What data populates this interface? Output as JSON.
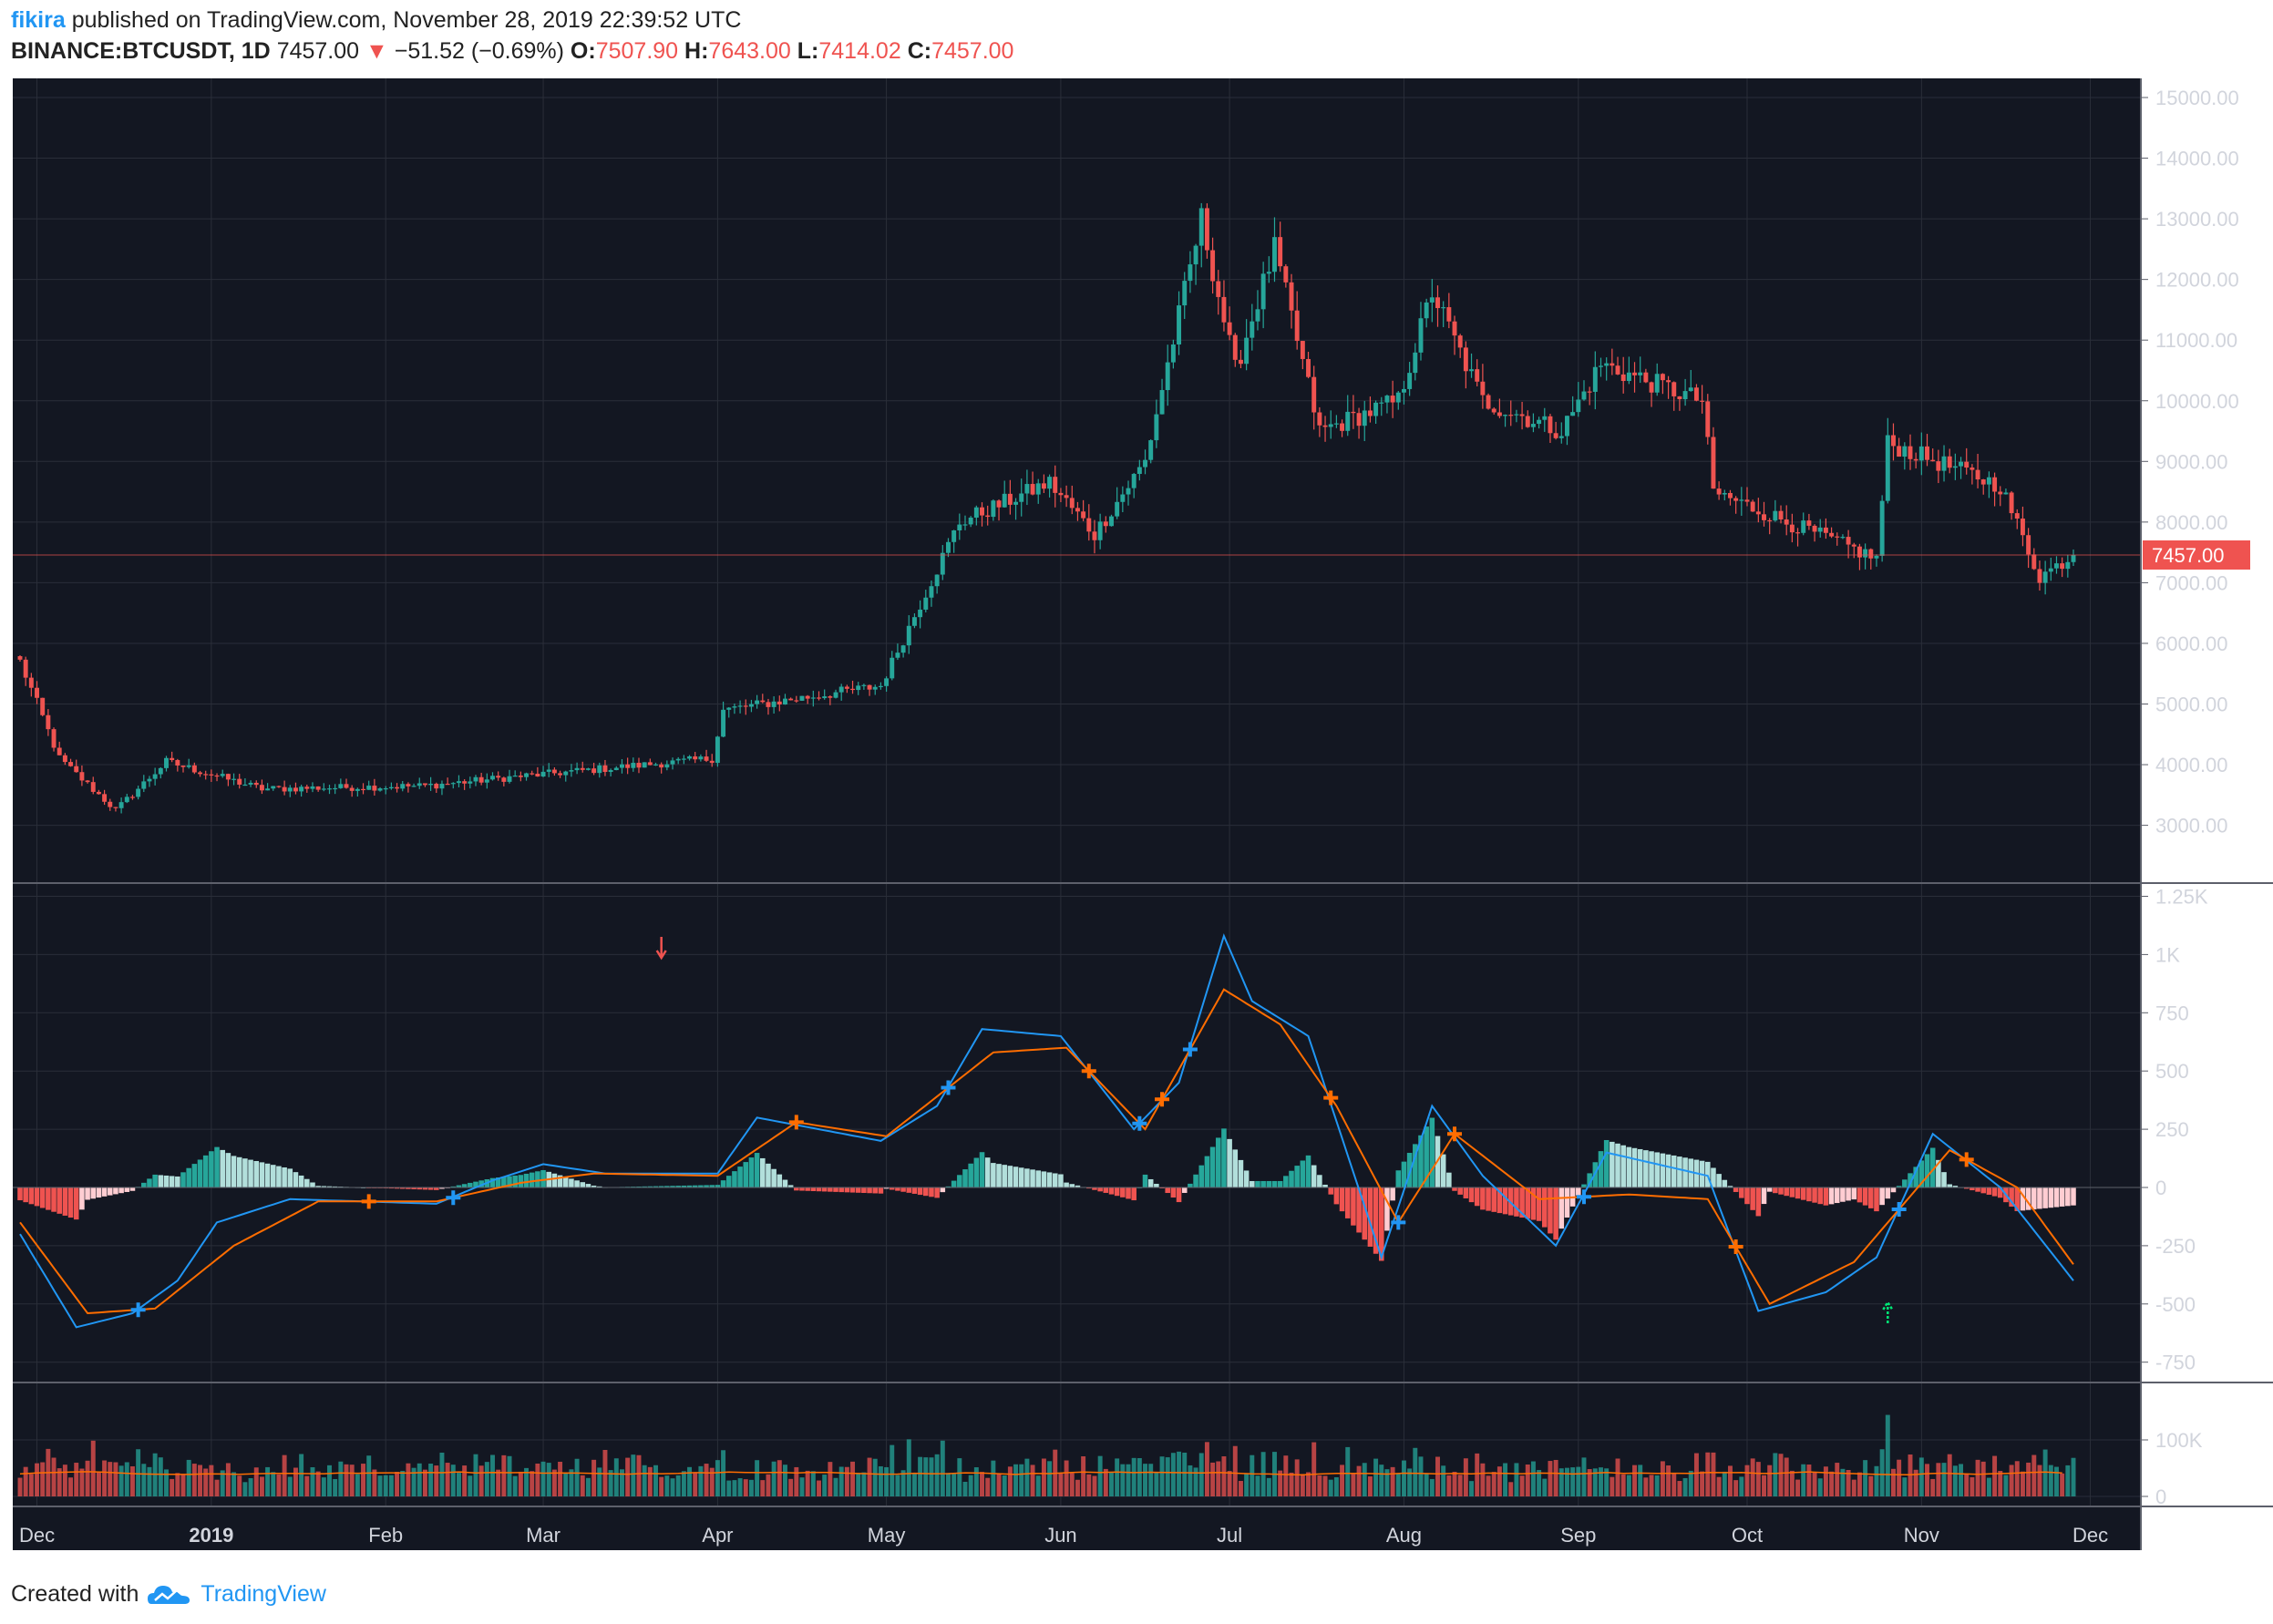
{
  "header": {
    "user": "fikira",
    "published_text": "published on TradingView.com, November 28, 2019 22:39:52 UTC",
    "symbol": "BINANCE:BTCUSDT, 1D",
    "last_price": "7457.00",
    "change_arrow": "▼",
    "change": "−51.52 (−0.69%)",
    "o_label": "O:",
    "o_value": "7507.90",
    "h_label": "H:",
    "h_value": "7643.00",
    "l_label": "L:",
    "l_value": "7414.02",
    "c_label": "C:",
    "c_value": "7457.00"
  },
  "footer": {
    "created_with": "Created with",
    "brand": "TradingView"
  },
  "colors": {
    "background": "#131722",
    "grid": "#2a2e39",
    "up": "#26a69a",
    "down": "#ef5350",
    "up_light": "#b2dfdb",
    "down_light": "#ffcdd2",
    "macd": "#2196f3",
    "signal": "#ff6d00",
    "axis_text": "#d1d4dc"
  },
  "chart_data": [
    {
      "type": "candlestick",
      "pane": "price",
      "y_ticks": [
        "15000.00",
        "14000.00",
        "13000.00",
        "12000.00",
        "11000.00",
        "10000.00",
        "9000.00",
        "8000.00",
        "7000.00",
        "6000.00",
        "5000.00",
        "4000.00",
        "3000.00"
      ],
      "ylim": [
        2300,
        15300
      ],
      "last_price_label": "7457.00",
      "x_ticks": [
        "Dec",
        "2019",
        "Feb",
        "Mar",
        "Apr",
        "May",
        "Jun",
        "Jul",
        "Aug",
        "Sep",
        "Oct",
        "Nov",
        "Dec"
      ],
      "date_range": [
        "2018-11-28",
        "2019-11-28"
      ],
      "key_points": [
        {
          "date": "2018-11-28",
          "close": 5700
        },
        {
          "date": "2018-12-05",
          "close": 4100
        },
        {
          "date": "2018-12-15",
          "close": 3250
        },
        {
          "date": "2018-12-24",
          "close": 4050
        },
        {
          "date": "2019-01-10",
          "close": 3600
        },
        {
          "date": "2019-02-08",
          "close": 3650
        },
        {
          "date": "2019-02-24",
          "close": 3800
        },
        {
          "date": "2019-03-31",
          "close": 4100
        },
        {
          "date": "2019-04-02",
          "close": 4900
        },
        {
          "date": "2019-04-30",
          "close": 5300
        },
        {
          "date": "2019-05-14",
          "close": 8000
        },
        {
          "date": "2019-05-30",
          "close": 8650
        },
        {
          "date": "2019-06-07",
          "close": 7800
        },
        {
          "date": "2019-06-16",
          "close": 9000
        },
        {
          "date": "2019-06-26",
          "close": 13000
        },
        {
          "date": "2019-07-02",
          "close": 10500
        },
        {
          "date": "2019-07-09",
          "close": 12500
        },
        {
          "date": "2019-07-17",
          "close": 9500
        },
        {
          "date": "2019-07-31",
          "close": 10000
        },
        {
          "date": "2019-08-06",
          "close": 11800
        },
        {
          "date": "2019-08-15",
          "close": 10000
        },
        {
          "date": "2019-08-29",
          "close": 9500
        },
        {
          "date": "2019-09-05",
          "close": 10600
        },
        {
          "date": "2019-09-23",
          "close": 10000
        },
        {
          "date": "2019-09-25",
          "close": 8500
        },
        {
          "date": "2019-10-24",
          "close": 7400
        },
        {
          "date": "2019-10-26",
          "close": 9300
        },
        {
          "date": "2019-11-15",
          "close": 8600
        },
        {
          "date": "2019-11-22",
          "close": 7100
        },
        {
          "date": "2019-11-28",
          "close": 7457
        }
      ]
    },
    {
      "type": "line",
      "pane": "macd",
      "y_ticks": [
        "1.25K",
        "1K",
        "750",
        "500",
        "250",
        "0",
        "-250",
        "-500",
        "-750"
      ],
      "ylim": [
        -800,
        1250
      ],
      "series": [
        {
          "role": "macd",
          "color": "#2196f3",
          "points": [
            [
              "2018-11-28",
              -200
            ],
            [
              "2018-12-08",
              -600
            ],
            [
              "2018-12-18",
              -540
            ],
            [
              "2018-12-26",
              -400
            ],
            [
              "2019-01-02",
              -150
            ],
            [
              "2019-01-15",
              -50
            ],
            [
              "2019-02-10",
              -70
            ],
            [
              "2019-02-20",
              30
            ],
            [
              "2019-03-01",
              100
            ],
            [
              "2019-03-12",
              60
            ],
            [
              "2019-04-01",
              60
            ],
            [
              "2019-04-08",
              300
            ],
            [
              "2019-04-30",
              200
            ],
            [
              "2019-05-10",
              350
            ],
            [
              "2019-05-18",
              680
            ],
            [
              "2019-06-01",
              650
            ],
            [
              "2019-06-14",
              250
            ],
            [
              "2019-06-22",
              450
            ],
            [
              "2019-06-30",
              1080
            ],
            [
              "2019-07-05",
              800
            ],
            [
              "2019-07-15",
              650
            ],
            [
              "2019-07-28",
              -300
            ],
            [
              "2019-08-06",
              350
            ],
            [
              "2019-08-15",
              50
            ],
            [
              "2019-08-28",
              -250
            ],
            [
              "2019-09-06",
              150
            ],
            [
              "2019-09-24",
              50
            ],
            [
              "2019-10-03",
              -530
            ],
            [
              "2019-10-15",
              -450
            ],
            [
              "2019-10-24",
              -300
            ],
            [
              "2019-11-03",
              230
            ],
            [
              "2019-11-15",
              0
            ],
            [
              "2019-11-28",
              -400
            ]
          ]
        },
        {
          "role": "signal",
          "color": "#ff6d00",
          "points": [
            [
              "2018-11-28",
              -150
            ],
            [
              "2018-12-10",
              -540
            ],
            [
              "2018-12-22",
              -520
            ],
            [
              "2019-01-05",
              -250
            ],
            [
              "2019-01-20",
              -60
            ],
            [
              "2019-02-10",
              -60
            ],
            [
              "2019-02-25",
              20
            ],
            [
              "2019-03-10",
              60
            ],
            [
              "2019-04-01",
              50
            ],
            [
              "2019-04-15",
              280
            ],
            [
              "2019-05-01",
              220
            ],
            [
              "2019-05-20",
              580
            ],
            [
              "2019-06-02",
              600
            ],
            [
              "2019-06-16",
              250
            ],
            [
              "2019-06-30",
              850
            ],
            [
              "2019-07-10",
              700
            ],
            [
              "2019-07-20",
              350
            ],
            [
              "2019-07-31",
              -150
            ],
            [
              "2019-08-10",
              230
            ],
            [
              "2019-08-25",
              -50
            ],
            [
              "2019-09-10",
              -30
            ],
            [
              "2019-09-24",
              -50
            ],
            [
              "2019-10-05",
              -500
            ],
            [
              "2019-10-20",
              -320
            ],
            [
              "2019-11-06",
              160
            ],
            [
              "2019-11-18",
              0
            ],
            [
              "2019-11-28",
              -330
            ]
          ]
        }
      ]
    },
    {
      "type": "bar",
      "pane": "volume",
      "y_ticks": [
        "100K",
        "0"
      ],
      "ylim": [
        0,
        190000
      ]
    }
  ]
}
